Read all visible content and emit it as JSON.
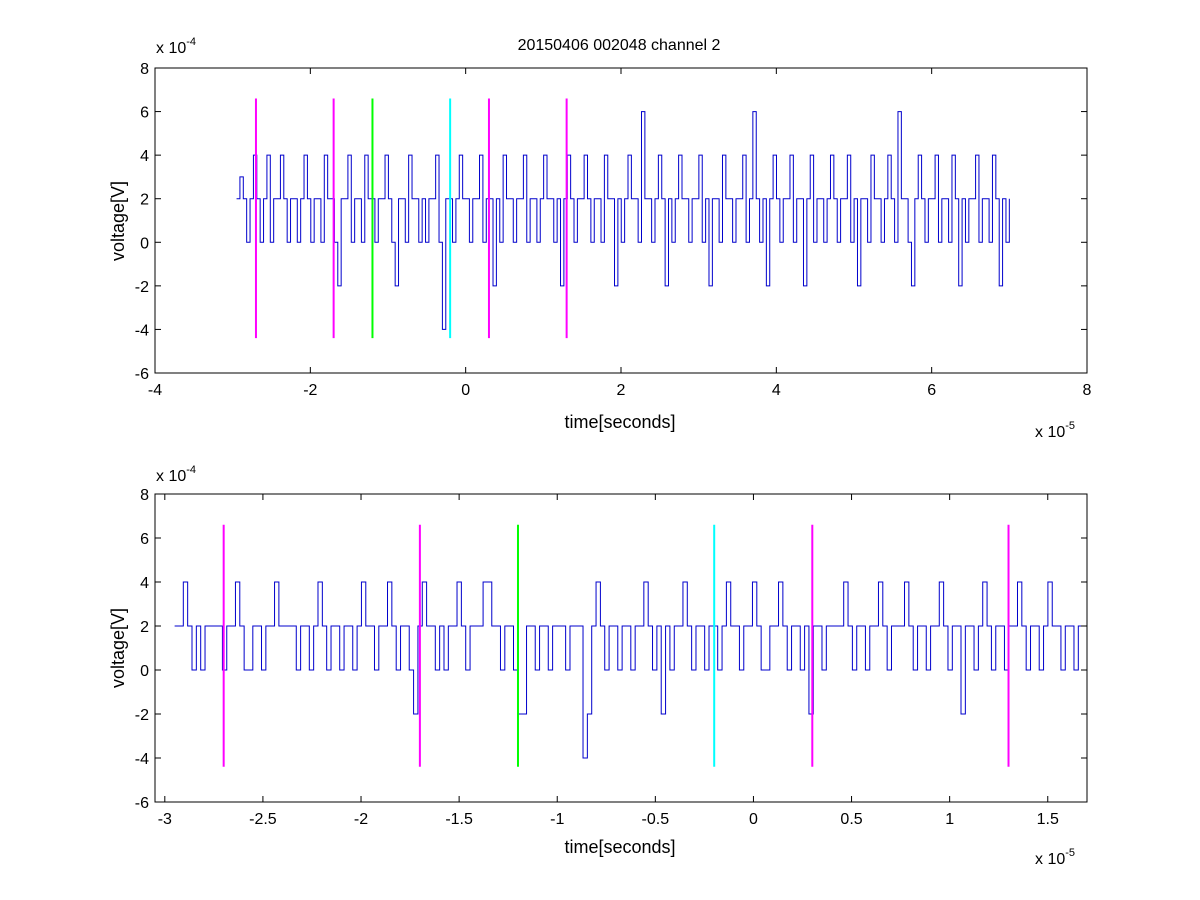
{
  "figure_title": "20150406 002048 channel 2",
  "chart_data": [
    {
      "type": "line",
      "title": "20150406 002048 channel 2",
      "xlabel": "time[seconds]",
      "ylabel": "voltage[V]",
      "x_exponent_label": "x 10",
      "x_exponent": "-5",
      "y_exponent_label": "x 10",
      "y_exponent": "-4",
      "xlim": [
        -4,
        8
      ],
      "ylim": [
        -6,
        8
      ],
      "xticks": [
        -4,
        -2,
        0,
        2,
        4,
        6,
        8
      ],
      "xtick_labels": [
        "-4",
        "-2",
        "0",
        "2",
        "4",
        "6",
        "8"
      ],
      "yticks": [
        -6,
        -4,
        -2,
        0,
        2,
        4,
        6,
        8
      ],
      "ytick_labels": [
        "-6",
        "-4",
        "-2",
        "0",
        "2",
        "4",
        "6",
        "8"
      ],
      "grid": false,
      "signal": {
        "color": "#0000cc",
        "x_start": -2.95,
        "x_end": 7.0,
        "levels": [
          -4,
          -2,
          0,
          2,
          4,
          6
        ],
        "values": [
          2,
          3,
          2,
          0,
          2,
          4,
          2,
          0,
          2,
          4,
          0,
          2,
          2,
          4,
          2,
          0,
          2,
          2,
          0,
          2,
          4,
          2,
          0,
          2,
          2,
          0,
          4,
          2,
          2,
          0,
          -2,
          2,
          2,
          4,
          0,
          2,
          2,
          0,
          4,
          2,
          2,
          0,
          2,
          2,
          4,
          2,
          0,
          -2,
          2,
          2,
          0,
          4,
          2,
          2,
          0,
          2,
          0,
          2,
          2,
          4,
          0,
          -4,
          2,
          2,
          0,
          2,
          4,
          2,
          2,
          0,
          2,
          2,
          4,
          0,
          2,
          2,
          -2,
          2,
          0,
          4,
          2,
          2,
          0,
          2,
          2,
          4,
          0,
          2,
          2,
          0,
          2,
          4,
          2,
          2,
          0,
          2,
          -2,
          2,
          4,
          2,
          0,
          2,
          2,
          4,
          2,
          0,
          2,
          2,
          0,
          4,
          2,
          2,
          -2,
          2,
          0,
          2,
          4,
          2,
          2,
          0,
          6,
          2,
          2,
          0,
          2,
          4,
          2,
          -2,
          2,
          0,
          2,
          4,
          2,
          2,
          0,
          2,
          2,
          4,
          0,
          2,
          -2,
          2,
          2,
          0,
          4,
          2,
          2,
          0,
          2,
          2,
          4,
          0,
          2,
          6,
          2,
          0,
          2,
          -2,
          2,
          4,
          2,
          0,
          2,
          2,
          4,
          0,
          2,
          2,
          -2,
          2,
          4,
          0,
          2,
          2,
          0,
          2,
          4,
          2,
          0,
          2,
          2,
          4,
          0,
          2,
          -2,
          2,
          2,
          0,
          4,
          2,
          2,
          0,
          2,
          4,
          2,
          0,
          6,
          2,
          2,
          0,
          -2,
          2,
          4,
          2,
          0,
          2,
          2,
          4,
          0,
          2,
          2,
          0,
          4,
          2,
          -2,
          2,
          0,
          2,
          2,
          4,
          0,
          2,
          2,
          0,
          4,
          2,
          -2,
          2,
          0,
          2
        ]
      },
      "markers": [
        {
          "x": -2.7,
          "color": "#ff00ff"
        },
        {
          "x": -1.7,
          "color": "#ff00ff"
        },
        {
          "x": -1.2,
          "color": "#00ff00"
        },
        {
          "x": -0.2,
          "color": "#00ffff"
        },
        {
          "x": 0.3,
          "color": "#ff00ff"
        },
        {
          "x": 1.3,
          "color": "#ff00ff"
        }
      ],
      "marker_range": [
        -4.4,
        6.6
      ]
    },
    {
      "type": "line",
      "title": "",
      "xlabel": "time[seconds]",
      "ylabel": "voltage[V]",
      "x_exponent_label": "x 10",
      "x_exponent": "-5",
      "y_exponent_label": "x 10",
      "y_exponent": "-4",
      "xlim": [
        -3.05,
        1.7
      ],
      "ylim": [
        -6,
        8
      ],
      "xticks": [
        -3,
        -2.5,
        -2,
        -1.5,
        -1,
        -0.5,
        0,
        0.5,
        1,
        1.5
      ],
      "xtick_labels": [
        "-3",
        "-2.5",
        "-2",
        "-1.5",
        "-1",
        "-0.5",
        "0",
        "0.5",
        "1",
        "1.5"
      ],
      "yticks": [
        -6,
        -4,
        -2,
        0,
        2,
        4,
        6,
        8
      ],
      "ytick_labels": [
        "-6",
        "-4",
        "-2",
        "0",
        "2",
        "4",
        "6",
        "8"
      ],
      "grid": false,
      "signal": {
        "color": "#0000cc",
        "x_start": -2.95,
        "x_end": 1.7,
        "values": [
          2,
          2,
          4,
          2,
          0,
          2,
          0,
          2,
          2,
          2,
          2,
          0,
          2,
          2,
          4,
          2,
          0,
          0,
          2,
          2,
          0,
          2,
          2,
          4,
          2,
          2,
          2,
          2,
          0,
          2,
          2,
          0,
          2,
          4,
          2,
          0,
          2,
          2,
          0,
          2,
          2,
          0,
          2,
          4,
          2,
          2,
          0,
          2,
          2,
          4,
          2,
          0,
          2,
          2,
          0,
          -2,
          2,
          4,
          2,
          2,
          0,
          2,
          0,
          2,
          2,
          4,
          2,
          0,
          2,
          2,
          2,
          4,
          4,
          2,
          2,
          0,
          2,
          2,
          0,
          -2,
          -2,
          2,
          2,
          0,
          2,
          2,
          0,
          2,
          2,
          2,
          0,
          2,
          2,
          2,
          -4,
          -2,
          2,
          4,
          2,
          0,
          2,
          2,
          0,
          2,
          2,
          0,
          2,
          2,
          4,
          2,
          0,
          2,
          -2,
          2,
          0,
          2,
          2,
          4,
          2,
          0,
          2,
          2,
          0,
          2,
          2,
          0,
          2,
          4,
          2,
          2,
          0,
          2,
          2,
          4,
          2,
          0,
          0,
          2,
          2,
          4,
          2,
          0,
          2,
          2,
          0,
          2,
          -2,
          2,
          2,
          0,
          2,
          2,
          2,
          2,
          4,
          2,
          0,
          2,
          2,
          0,
          2,
          2,
          4,
          2,
          0,
          2,
          2,
          2,
          4,
          2,
          0,
          2,
          2,
          0,
          2,
          2,
          4,
          2,
          0,
          2,
          2,
          -2,
          2,
          2,
          0,
          2,
          4,
          2,
          0,
          2,
          2,
          0,
          2,
          2,
          4,
          2,
          0,
          2,
          2,
          0,
          2,
          4,
          2,
          2,
          0,
          2,
          2,
          0,
          2,
          2,
          4
        ]
      },
      "markers": [
        {
          "x": -2.7,
          "color": "#ff00ff"
        },
        {
          "x": -1.7,
          "color": "#ff00ff"
        },
        {
          "x": -1.2,
          "color": "#00ff00"
        },
        {
          "x": -0.2,
          "color": "#00ffff"
        },
        {
          "x": 0.3,
          "color": "#ff00ff"
        },
        {
          "x": 1.3,
          "color": "#ff00ff"
        }
      ],
      "marker_range": [
        -4.4,
        6.6
      ]
    }
  ]
}
